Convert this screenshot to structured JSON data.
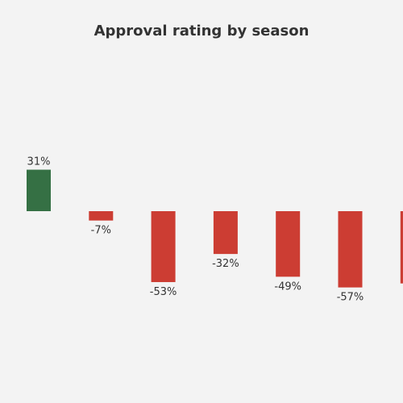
{
  "chart_data": {
    "type": "bar",
    "title": "Approval rating by season",
    "xlabel": "",
    "ylabel": "",
    "categories": [
      "",
      "",
      "",
      "",
      "",
      "",
      ""
    ],
    "values": [
      31,
      -7,
      -53,
      -32,
      -49,
      -57,
      -54
    ],
    "value_labels": [
      "31%",
      "-7%",
      "-53%",
      "-32%",
      "-49%",
      "-57%",
      "-"
    ],
    "ylim": [
      -100,
      100
    ],
    "grid": false,
    "legend": "none",
    "colors": {
      "positive": "#357044",
      "negative": "#cc3d33"
    }
  }
}
